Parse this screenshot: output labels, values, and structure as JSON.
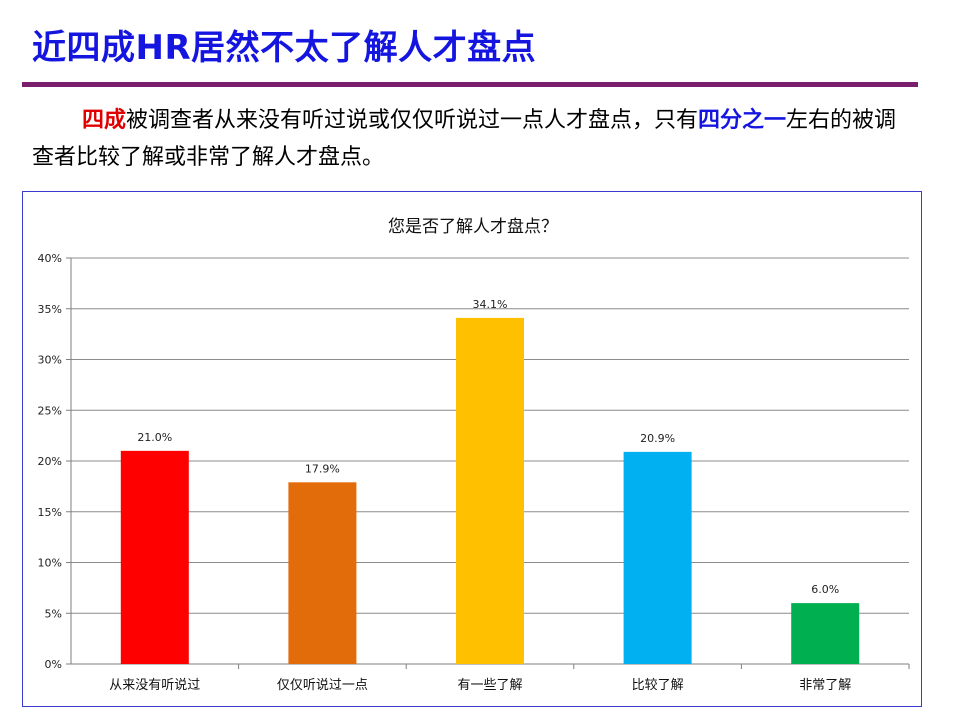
{
  "slide": {
    "title": "近四成HR居然不太了解人才盘点",
    "summary": {
      "part1_highlight": "四成",
      "part2": "被调查者从来没有听过说或仅仅听说过一点人才盘点，只有",
      "part3_highlight": "四分之一",
      "part4": "左右的被调查者比较了解或非常了解人才盘点。"
    }
  },
  "chart_data": {
    "type": "bar",
    "title": "您是否了解人才盘点？",
    "categories": [
      "从来没有听说过",
      "仅仅听说过一点",
      "有一些了解",
      "比较了解",
      "非常了解"
    ],
    "values": [
      21.0,
      17.9,
      34.1,
      20.9,
      6.0
    ],
    "value_labels": [
      "21.0%",
      "17.9%",
      "34.1%",
      "20.9%",
      "6.0%"
    ],
    "bar_colors": [
      "#ff0000",
      "#e36c0a",
      "#ffc000",
      "#00b0f0",
      "#00b050"
    ],
    "ylim": [
      0,
      40
    ],
    "yticks": [
      0,
      5,
      10,
      15,
      20,
      25,
      30,
      35,
      40
    ],
    "ytick_labels": [
      "0%",
      "5%",
      "10%",
      "15%",
      "20%",
      "25%",
      "30%",
      "35%",
      "40%"
    ],
    "grid": true,
    "legend": "none",
    "xlabel": "",
    "ylabel": ""
  }
}
